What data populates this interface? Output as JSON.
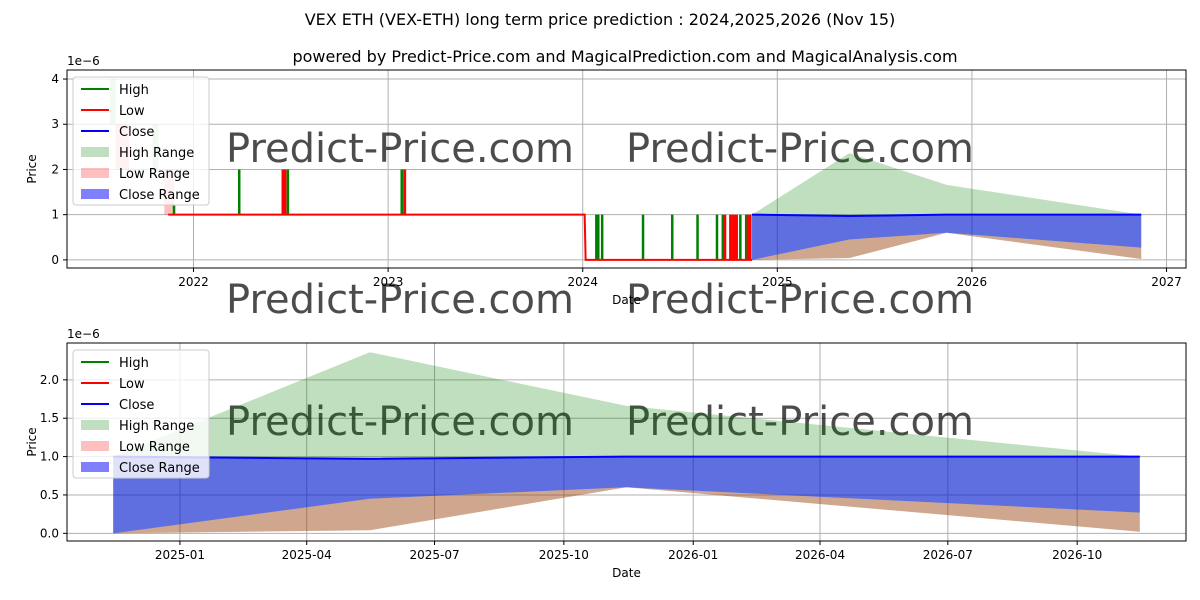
{
  "title": "VEX ETH (VEX-ETH) long term price prediction : 2024,2025,2026 (Nov 15)",
  "subtitle": "powered by Predict-Price.com and MagicalPrediction.com and MagicalAnalysis.com",
  "watermark": "Predict-Price.com",
  "colors": {
    "high": "#008000",
    "low": "#ff0000",
    "close": "#0000ff",
    "high_range": "#c0dfc0",
    "low_range": "#ffbcbc",
    "close_range": "#8080ff"
  },
  "legend": [
    "High",
    "Low",
    "Close",
    "High Range",
    "Low Range",
    "Close Range"
  ],
  "chart_data": [
    {
      "type": "line",
      "name": "top",
      "xlabel": "Date",
      "ylabel": "Price",
      "y_multiplier": "1e−6",
      "xlim": [
        2021.35,
        2027.1
      ],
      "ylim": [
        -0.18,
        4.2
      ],
      "xticks": [
        {
          "v": 2022,
          "label": "2022"
        },
        {
          "v": 2023,
          "label": "2023"
        },
        {
          "v": 2024,
          "label": "2024"
        },
        {
          "v": 2025,
          "label": "2025"
        },
        {
          "v": 2026,
          "label": "2026"
        },
        {
          "v": 2027,
          "label": "2027"
        }
      ],
      "yticks": [
        {
          "v": 0,
          "label": "0"
        },
        {
          "v": 1,
          "label": "1"
        },
        {
          "v": 2,
          "label": "2"
        },
        {
          "v": 3,
          "label": "3"
        },
        {
          "v": 4,
          "label": "4"
        }
      ],
      "history_high_range": [
        [
          2021.57,
          2021.6,
          3,
          4
        ],
        [
          2021.79,
          2021.82,
          2,
          3
        ]
      ],
      "history_low_range": [
        [
          2021.6,
          2021.67,
          2,
          3
        ],
        [
          2021.85,
          2021.9,
          1,
          2
        ]
      ],
      "history_low": [
        [
          2021.87,
          1
        ],
        [
          2024.01,
          1
        ],
        [
          2024.015,
          0
        ],
        [
          2024.87,
          0
        ]
      ],
      "high_spikes": [
        [
          2021.9,
          1.2
        ],
        [
          2022.235,
          2
        ],
        [
          2022.485,
          2
        ],
        [
          2023.07,
          2
        ],
        [
          2024.07,
          1
        ],
        [
          2024.08,
          1
        ],
        [
          2024.1,
          1
        ],
        [
          2024.31,
          1
        ],
        [
          2024.46,
          1
        ],
        [
          2024.59,
          1
        ],
        [
          2024.69,
          1
        ],
        [
          2024.72,
          1
        ],
        [
          2024.81,
          1
        ],
        [
          2024.84,
          1
        ]
      ],
      "low_spikes": [
        [
          2022.46,
          2
        ],
        [
          2022.47,
          2
        ],
        [
          2023.085,
          2
        ],
        [
          2024.73,
          1
        ],
        [
          2024.76,
          1
        ],
        [
          2024.775,
          1
        ],
        [
          2024.79,
          1
        ],
        [
          2024.85,
          1
        ],
        [
          2024.86,
          1
        ]
      ],
      "forecast": {
        "x": [
          2024.87,
          2025.37,
          2025.87,
          2026.87
        ],
        "high": [
          1.0,
          2.36,
          1.66,
          1.0
        ],
        "close": [
          1.0,
          0.97,
          1.0,
          1.0
        ],
        "close_low": [
          0.0,
          0.45,
          0.6,
          0.27
        ],
        "low": [
          0.0,
          0.04,
          0.6,
          0.02
        ]
      }
    },
    {
      "type": "area",
      "name": "bottom",
      "xlabel": "Date",
      "ylabel": "Price",
      "y_multiplier": "1e−6",
      "xlim": [
        2024.78,
        2026.96
      ],
      "ylim": [
        -0.1,
        2.48
      ],
      "xticks": [
        {
          "v": 2025.0,
          "label": "2025-01"
        },
        {
          "v": 2025.247,
          "label": "2025-04"
        },
        {
          "v": 2025.496,
          "label": "2025-07"
        },
        {
          "v": 2025.748,
          "label": "2025-10"
        },
        {
          "v": 2026.0,
          "label": "2026-01"
        },
        {
          "v": 2026.247,
          "label": "2026-04"
        },
        {
          "v": 2026.496,
          "label": "2026-07"
        },
        {
          "v": 2026.748,
          "label": "2026-10"
        }
      ],
      "yticks": [
        {
          "v": 0,
          "label": "0.0"
        },
        {
          "v": 0.5,
          "label": "0.5"
        },
        {
          "v": 1.0,
          "label": "1.0"
        },
        {
          "v": 1.5,
          "label": "1.5"
        },
        {
          "v": 2.0,
          "label": "2.0"
        }
      ],
      "forecast": {
        "x": [
          2024.87,
          2025.37,
          2025.87,
          2026.87
        ],
        "high": [
          1.0,
          2.36,
          1.66,
          1.0
        ],
        "close": [
          1.0,
          0.97,
          1.0,
          1.0
        ],
        "close_low": [
          0.0,
          0.45,
          0.6,
          0.27
        ],
        "low": [
          0.0,
          0.04,
          0.6,
          0.02
        ]
      }
    }
  ]
}
